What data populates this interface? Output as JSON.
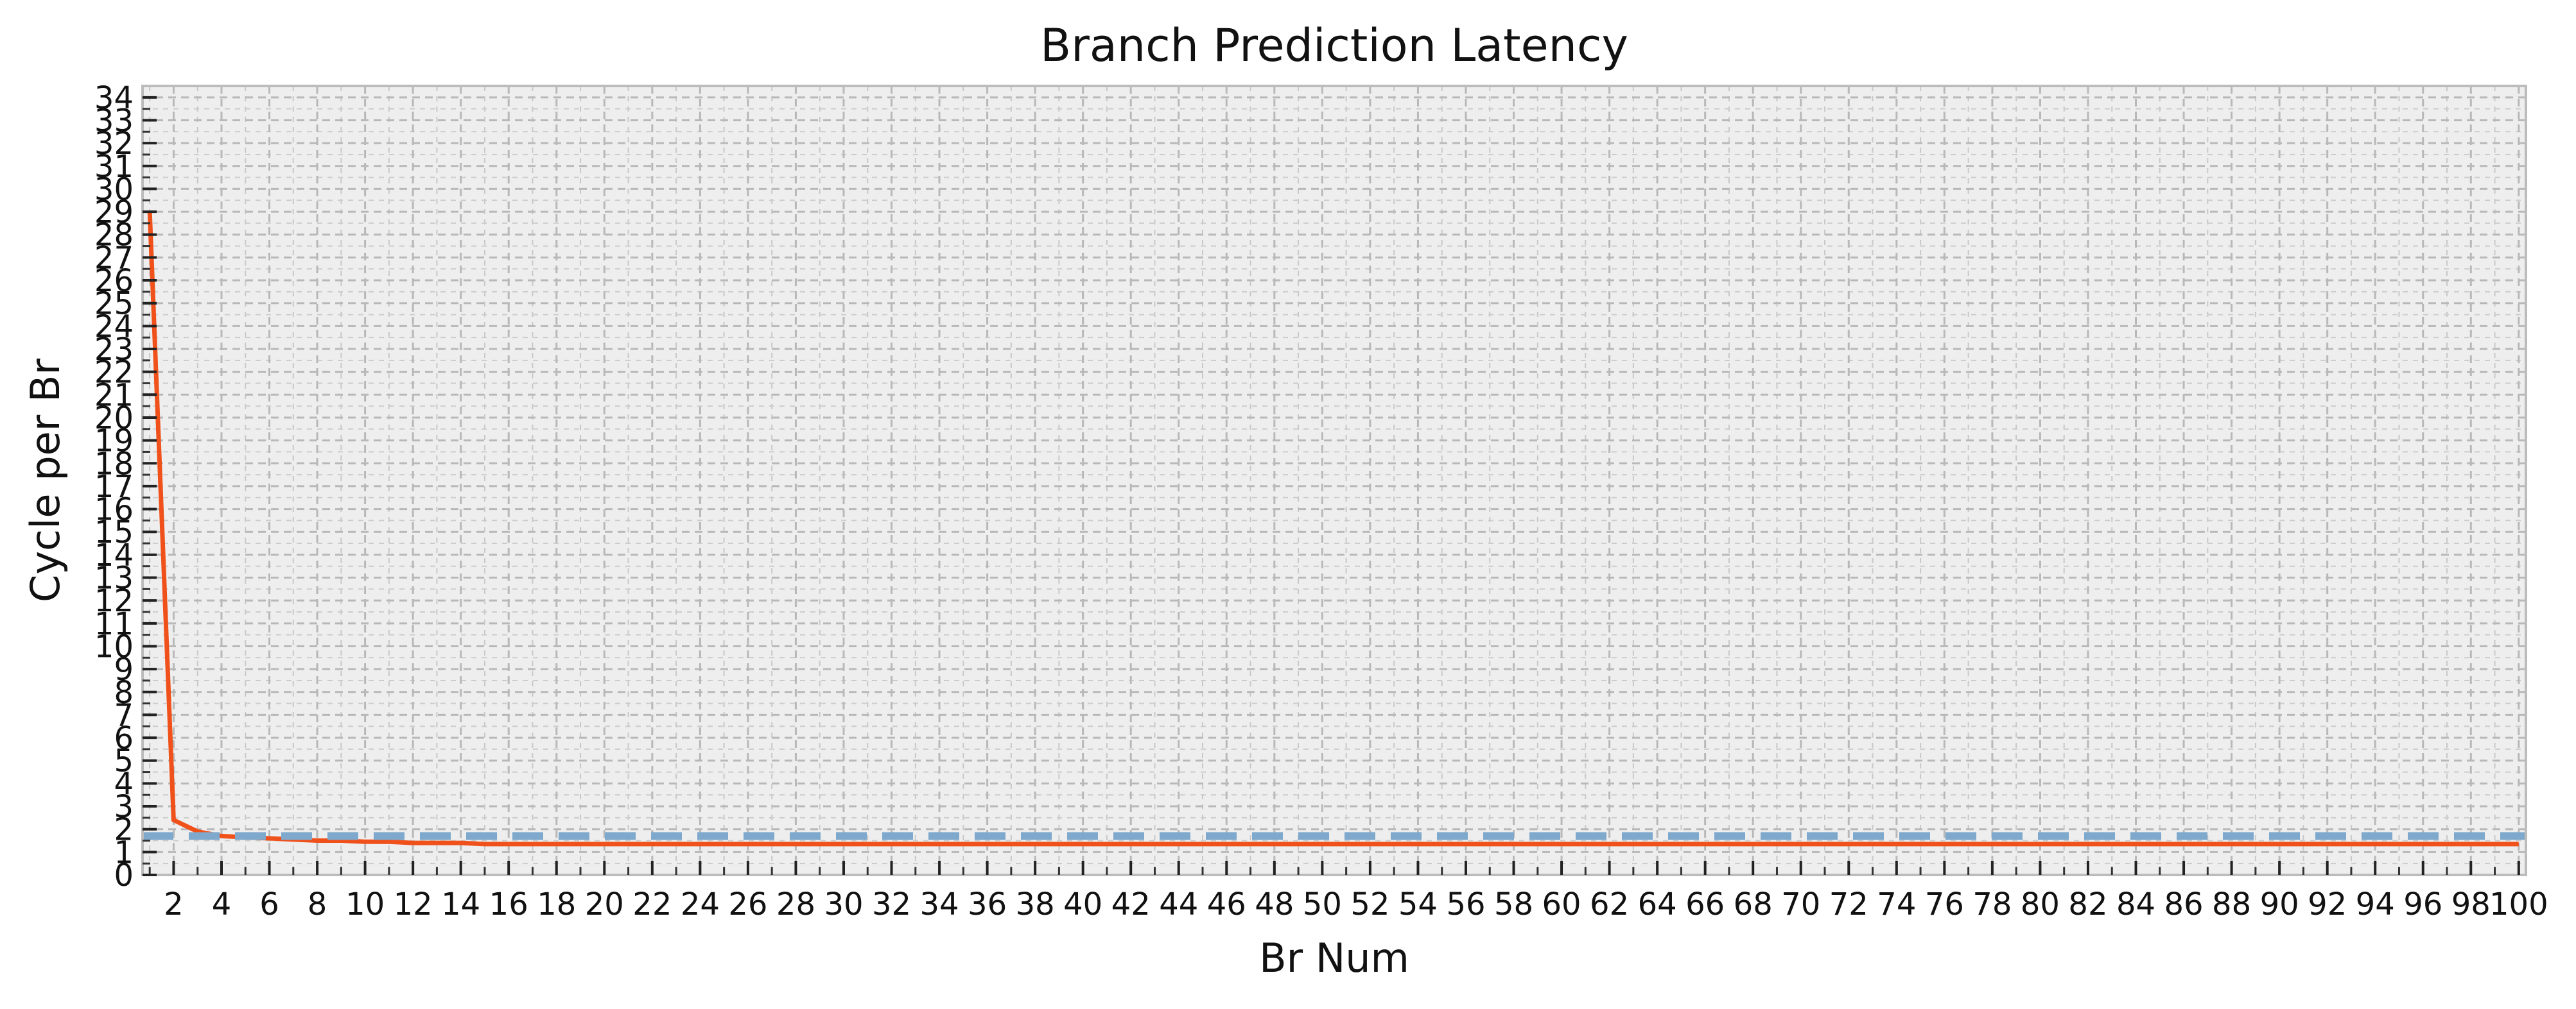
{
  "chart_data": {
    "type": "line",
    "title": "Branch Prediction Latency",
    "xlabel": "Br Num",
    "ylabel": "Cycle per Br",
    "xlim": [
      0.7,
      100.3
    ],
    "ylim": [
      0,
      34.5
    ],
    "x_ticks": [
      2,
      4,
      6,
      8,
      10,
      12,
      14,
      16,
      18,
      20,
      22,
      24,
      26,
      28,
      30,
      32,
      34,
      36,
      38,
      40,
      42,
      44,
      46,
      48,
      50,
      52,
      54,
      56,
      58,
      60,
      62,
      64,
      66,
      68,
      70,
      72,
      74,
      76,
      78,
      80,
      82,
      84,
      86,
      88,
      90,
      92,
      94,
      96,
      98,
      100
    ],
    "y_ticks": [
      0,
      1,
      2,
      3,
      4,
      5,
      6,
      7,
      8,
      9,
      10,
      11,
      12,
      13,
      14,
      15,
      16,
      17,
      18,
      19,
      20,
      21,
      22,
      23,
      24,
      25,
      26,
      27,
      28,
      29,
      30,
      31,
      32,
      33,
      34
    ],
    "grid": true,
    "background": "#eeeeee",
    "series": [
      {
        "style": "solid",
        "color": "#f0501a",
        "x": [
          1,
          2,
          3,
          4,
          5,
          6,
          7,
          8,
          9,
          10,
          11,
          12,
          13,
          14,
          15,
          16,
          17,
          18,
          19,
          20,
          21,
          22,
          23,
          24,
          25,
          26,
          27,
          28,
          29,
          30,
          31,
          32,
          33,
          34,
          35,
          36,
          37,
          38,
          39,
          40,
          41,
          42,
          43,
          44,
          45,
          46,
          47,
          48,
          49,
          50,
          51,
          52,
          53,
          54,
          55,
          56,
          57,
          58,
          59,
          60,
          61,
          62,
          63,
          64,
          65,
          66,
          67,
          68,
          69,
          70,
          71,
          72,
          73,
          74,
          75,
          76,
          77,
          78,
          79,
          80,
          81,
          82,
          83,
          84,
          85,
          86,
          87,
          88,
          89,
          90,
          91,
          92,
          93,
          94,
          95,
          96,
          97,
          98,
          99,
          100
        ],
        "values": [
          29,
          2.4,
          1.9,
          1.7,
          1.65,
          1.6,
          1.55,
          1.5,
          1.5,
          1.45,
          1.45,
          1.4,
          1.4,
          1.4,
          1.35,
          1.35,
          1.35,
          1.35,
          1.35,
          1.35,
          1.35,
          1.35,
          1.35,
          1.35,
          1.35,
          1.35,
          1.35,
          1.35,
          1.35,
          1.35,
          1.35,
          1.35,
          1.35,
          1.35,
          1.35,
          1.35,
          1.35,
          1.35,
          1.35,
          1.35,
          1.35,
          1.35,
          1.35,
          1.35,
          1.35,
          1.35,
          1.35,
          1.35,
          1.35,
          1.35,
          1.35,
          1.35,
          1.35,
          1.35,
          1.35,
          1.35,
          1.35,
          1.35,
          1.35,
          1.35,
          1.35,
          1.35,
          1.35,
          1.35,
          1.35,
          1.35,
          1.35,
          1.35,
          1.35,
          1.35,
          1.35,
          1.35,
          1.35,
          1.35,
          1.35,
          1.35,
          1.35,
          1.35,
          1.35,
          1.35,
          1.35,
          1.35,
          1.35,
          1.35,
          1.35,
          1.35,
          1.35,
          1.35,
          1.35,
          1.35,
          1.35,
          1.35,
          1.35,
          1.35,
          1.35,
          1.35,
          1.35,
          1.35,
          1.35,
          1.35
        ]
      },
      {
        "style": "dashed",
        "color": "#7fa9cc",
        "x": [
          0.7,
          100.3
        ],
        "values": [
          1.7,
          1.7
        ]
      }
    ]
  }
}
